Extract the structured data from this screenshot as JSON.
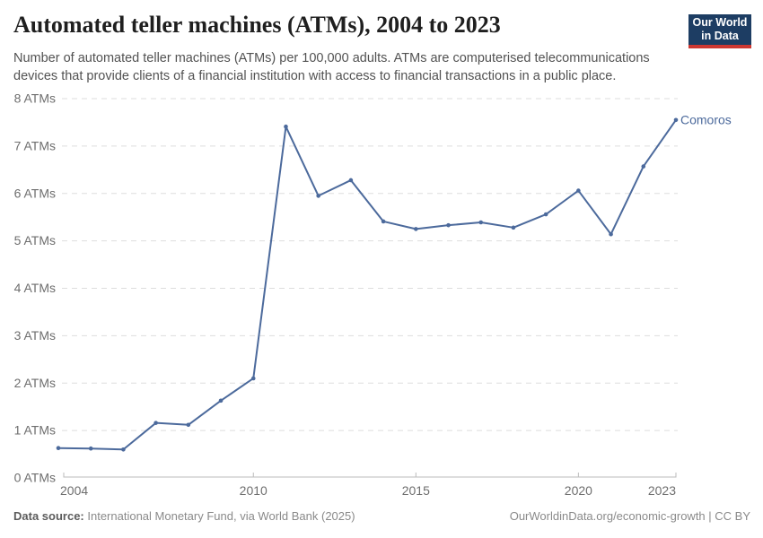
{
  "header": {
    "title": "Automated teller machines (ATMs), 2004 to 2023",
    "subtitle": "Number of automated teller machines (ATMs) per 100,000 adults. ATMs are computerised telecommunications devices that provide clients of a financial institution with access to financial transactions in a public place.",
    "logo": {
      "line1": "Our World",
      "line2": "in Data"
    }
  },
  "chart_data": {
    "type": "line",
    "title": "Automated teller machines (ATMs), 2004 to 2023",
    "entity": "Comoros",
    "unit": "ATMs per 100,000 adults",
    "xlim": [
      2004,
      2023
    ],
    "ylim": [
      0,
      8
    ],
    "grid": "horizontal-dashed",
    "legend_position": "end-of-line-label",
    "x_ticks": [
      {
        "year": 2004,
        "label": "2004",
        "anchor": "start",
        "tick": false
      },
      {
        "year": 2010,
        "label": "2010",
        "anchor": "middle",
        "tick": true
      },
      {
        "year": 2015,
        "label": "2015",
        "anchor": "middle",
        "tick": true
      },
      {
        "year": 2020,
        "label": "2020",
        "anchor": "middle",
        "tick": true
      },
      {
        "year": 2023,
        "label": "2023",
        "anchor": "end",
        "tick": false
      }
    ],
    "y_ticks": [
      {
        "value": 0,
        "label": "0 ATMs"
      },
      {
        "value": 1,
        "label": "1 ATMs"
      },
      {
        "value": 2,
        "label": "2 ATMs"
      },
      {
        "value": 3,
        "label": "3 ATMs"
      },
      {
        "value": 4,
        "label": "4 ATMs"
      },
      {
        "value": 5,
        "label": "5 ATMs"
      },
      {
        "value": 6,
        "label": "6 ATMs"
      },
      {
        "value": 7,
        "label": "7 ATMs"
      },
      {
        "value": 8,
        "label": "8 ATMs"
      }
    ],
    "points": [
      {
        "year": 2004,
        "value": 0.63
      },
      {
        "year": 2005,
        "value": 0.62
      },
      {
        "year": 2006,
        "value": 0.6
      },
      {
        "year": 2007,
        "value": 1.16
      },
      {
        "year": 2008,
        "value": 1.12
      },
      {
        "year": 2009,
        "value": 1.63
      },
      {
        "year": 2010,
        "value": 2.1
      },
      {
        "year": 2011,
        "value": 7.41
      },
      {
        "year": 2012,
        "value": 5.95
      },
      {
        "year": 2013,
        "value": 6.28
      },
      {
        "year": 2014,
        "value": 5.41
      },
      {
        "year": 2015,
        "value": 5.25
      },
      {
        "year": 2016,
        "value": 5.33
      },
      {
        "year": 2017,
        "value": 5.39
      },
      {
        "year": 2018,
        "value": 5.28
      },
      {
        "year": 2019,
        "value": 5.56
      },
      {
        "year": 2020,
        "value": 6.06
      },
      {
        "year": 2021,
        "value": 5.14
      },
      {
        "year": 2022,
        "value": 6.57
      },
      {
        "year": 2023,
        "value": 7.55
      }
    ]
  },
  "footer": {
    "data_source_label": "Data source:",
    "data_source_value": "International Monetary Fund, via World Bank (2025)",
    "link": "OurWorldinData.org/economic-growth | CC BY"
  },
  "colors": {
    "line": "#4C6A9C",
    "entity_label": "#4C6A9C",
    "grid": "#dddddd",
    "axis": "#bbbbbb",
    "axis_text": "#6e6e6e",
    "title_text": "#1f1f1f",
    "subtitle_text": "#525252",
    "footer_text": "#8a8a8a",
    "logo_bg": "#1d3d63",
    "logo_accent": "#cd3731"
  }
}
